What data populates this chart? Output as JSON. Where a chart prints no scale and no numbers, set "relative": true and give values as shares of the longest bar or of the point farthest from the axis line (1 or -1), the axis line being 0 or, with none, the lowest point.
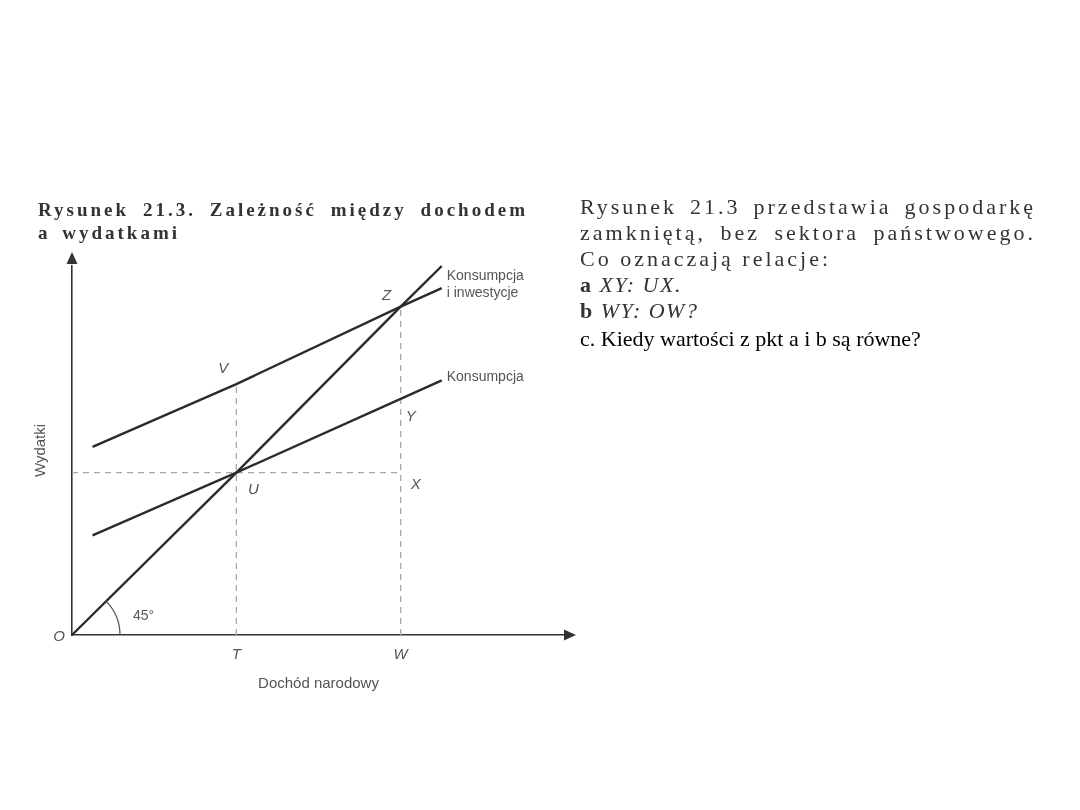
{
  "chart_data": {
    "type": "line",
    "title": "Rysunek 21.3. Zależność między dochodem a wydatkami",
    "xlabel": "Dochód narodowy",
    "ylabel": "Wydatki",
    "relative": true,
    "grid": false,
    "legend": false,
    "marker": "none",
    "line_style": "solid",
    "categories": [
      null,
      null,
      null,
      null,
      null,
      null,
      null,
      null,
      "T",
      null,
      null,
      null,
      null,
      null,
      null,
      null,
      "W",
      null,
      null,
      null,
      null,
      null,
      null,
      null,
      null
    ],
    "series": [
      {
        "color": "#2b2b2b",
        "values": [
          0,
          null,
          null,
          null,
          null,
          null,
          null,
          null,
          0.44,
          null,
          null,
          null,
          null,
          null,
          null,
          null,
          0.89,
          null,
          1,
          null,
          null,
          null,
          null,
          null,
          null
        ]
      },
      {
        "name": "Konsumpcja i inwestycje",
        "color": "#2b2b2b",
        "values": [
          null,
          0.51,
          null,
          null,
          null,
          null,
          null,
          null,
          0.68,
          null,
          null,
          null,
          null,
          null,
          null,
          null,
          0.89,
          null,
          0.94,
          null,
          null,
          null,
          null,
          null,
          null
        ]
      },
      {
        "name": "Konsumpcja",
        "color": "#2b2b2b",
        "values": [
          null,
          0.27,
          null,
          null,
          null,
          null,
          null,
          null,
          0.44,
          null,
          null,
          null,
          null,
          null,
          null,
          null,
          0.64,
          null,
          0.69,
          null,
          null,
          null,
          null,
          null,
          null
        ]
      },
      {
        "color": "#a8a8a8",
        "line_style": "dashed",
        "values": [
          0.44,
          null,
          null,
          null,
          null,
          null,
          null,
          null,
          null,
          null,
          null,
          null,
          null,
          null,
          null,
          null,
          0.44,
          null,
          null,
          null,
          null,
          null,
          null,
          null,
          null
        ]
      }
    ],
    "ref_lines": [
      {
        "axis": "x",
        "value": "T",
        "color": "#a8a8a8",
        "line_style": "dashed"
      },
      {
        "axis": "x",
        "value": "W",
        "color": "#a8a8a8",
        "line_style": "dashed"
      }
    ],
    "annotations": [
      {
        "text": "Z",
        "x": "W",
        "y": 0.89
      },
      {
        "text": "V",
        "x": "T",
        "y": 0.68
      },
      {
        "text": "U",
        "x": "T",
        "y": 0.44
      },
      {
        "text": "Y",
        "x": "W",
        "y": 0.64
      },
      {
        "text": "X",
        "x": "W",
        "y": 0.44
      },
      "O",
      "45°",
      "Rysunek 21.3 przedstawia gospodarkę zamkniętą, bez sektora państwowego. Co oznaczają relacje:",
      "a XY: UX.",
      "b WY: OW?",
      "c. Kiedy wartości z pkt a i b są równe?"
    ]
  }
}
